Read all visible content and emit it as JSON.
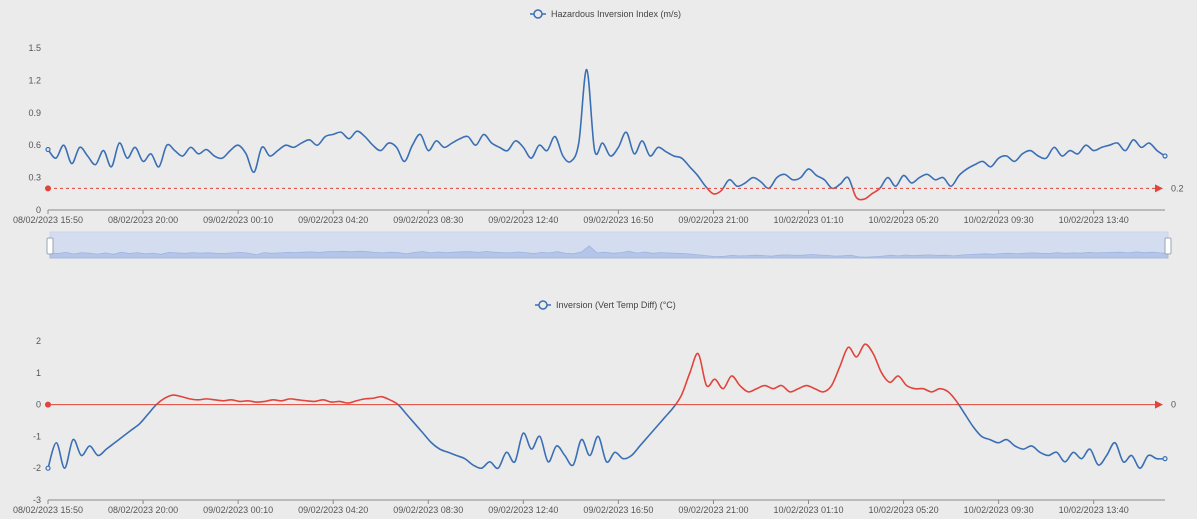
{
  "chart_data": [
    {
      "type": "line",
      "title": "",
      "legend": "Hazardous Inversion Index (m/s)",
      "legend_position": "top-center",
      "series_color": "#3a6fb5",
      "below_threshold_color": "#e0443a",
      "grid": false,
      "ylim": [
        0,
        1.5
      ],
      "yticks": [
        "0",
        "0.3",
        "0.6",
        "0.9",
        "1.2",
        "1.5"
      ],
      "xticks": [
        "08/02/2023 15:50",
        "08/02/2023 20:00",
        "09/02/2023 00:10",
        "09/02/2023 04:20",
        "09/02/2023 08:30",
        "09/02/2023 12:40",
        "09/02/2023 16:50",
        "09/02/2023 21:00",
        "10/02/2023 01:10",
        "10/02/2023 05:20",
        "10/02/2023 09:30",
        "10/02/2023 13:40"
      ],
      "x_start": "08/02/2023 15:50",
      "x_step_minutes": 30,
      "threshold": {
        "value": 0.2,
        "label": "0.2",
        "color": "#e0443a"
      },
      "values": [
        0.56,
        0.48,
        0.6,
        0.43,
        0.58,
        0.5,
        0.42,
        0.55,
        0.4,
        0.62,
        0.48,
        0.58,
        0.45,
        0.52,
        0.4,
        0.6,
        0.55,
        0.5,
        0.58,
        0.52,
        0.56,
        0.5,
        0.48,
        0.55,
        0.6,
        0.52,
        0.35,
        0.58,
        0.5,
        0.55,
        0.6,
        0.58,
        0.62,
        0.65,
        0.6,
        0.68,
        0.7,
        0.72,
        0.66,
        0.73,
        0.68,
        0.6,
        0.55,
        0.62,
        0.58,
        0.45,
        0.6,
        0.7,
        0.55,
        0.64,
        0.58,
        0.62,
        0.66,
        0.68,
        0.6,
        0.7,
        0.62,
        0.58,
        0.55,
        0.64,
        0.58,
        0.48,
        0.6,
        0.55,
        0.68,
        0.5,
        0.45,
        0.62,
        1.3,
        0.55,
        0.62,
        0.5,
        0.58,
        0.72,
        0.52,
        0.64,
        0.5,
        0.58,
        0.54,
        0.5,
        0.48,
        0.4,
        0.32,
        0.22,
        0.15,
        0.18,
        0.28,
        0.22,
        0.25,
        0.3,
        0.26,
        0.2,
        0.3,
        0.33,
        0.28,
        0.3,
        0.38,
        0.32,
        0.28,
        0.2,
        0.24,
        0.3,
        0.12,
        0.1,
        0.15,
        0.2,
        0.3,
        0.22,
        0.32,
        0.25,
        0.3,
        0.33,
        0.28,
        0.3,
        0.22,
        0.32,
        0.38,
        0.42,
        0.45,
        0.4,
        0.48,
        0.5,
        0.45,
        0.52,
        0.55,
        0.5,
        0.48,
        0.58,
        0.5,
        0.55,
        0.52,
        0.6,
        0.55,
        0.58,
        0.6,
        0.62,
        0.55,
        0.65,
        0.58,
        0.62,
        0.55,
        0.5
      ]
    },
    {
      "type": "line",
      "title": "",
      "legend": "Inversion (Vert Temp Diff) (°C)",
      "legend_position": "top-center",
      "series_color": "#3a6fb5",
      "above_threshold_color": "#e0443a",
      "grid": false,
      "ylim": [
        -3,
        2
      ],
      "yticks": [
        "-3",
        "-2",
        "-1",
        "0",
        "1",
        "2"
      ],
      "xticks": [
        "08/02/2023 15:50",
        "08/02/2023 20:00",
        "09/02/2023 00:10",
        "09/02/2023 04:20",
        "09/02/2023 08:30",
        "09/02/2023 12:40",
        "09/02/2023 16:50",
        "09/02/2023 21:00",
        "10/02/2023 01:10",
        "10/02/2023 05:20",
        "10/02/2023 09:30",
        "10/02/2023 13:40"
      ],
      "x_start": "08/02/2023 15:50",
      "x_step_minutes": 30,
      "threshold": {
        "value": 0,
        "label": "0",
        "color": "#e0443a"
      },
      "values": [
        -2.0,
        -1.2,
        -2.0,
        -1.1,
        -1.6,
        -1.3,
        -1.6,
        -1.4,
        -1.2,
        -1.0,
        -0.8,
        -0.6,
        -0.3,
        0.0,
        0.2,
        0.3,
        0.25,
        0.18,
        0.15,
        0.18,
        0.15,
        0.12,
        0.15,
        0.1,
        0.12,
        0.08,
        0.1,
        0.15,
        0.12,
        0.18,
        0.15,
        0.12,
        0.1,
        0.15,
        0.08,
        0.1,
        0.05,
        0.12,
        0.18,
        0.2,
        0.25,
        0.15,
        0.0,
        -0.3,
        -0.6,
        -0.9,
        -1.2,
        -1.4,
        -1.5,
        -1.6,
        -1.7,
        -1.9,
        -2.0,
        -1.8,
        -2.0,
        -1.5,
        -1.8,
        -0.9,
        -1.4,
        -1.0,
        -1.8,
        -1.3,
        -1.6,
        -1.9,
        -1.1,
        -1.6,
        -1.0,
        -1.8,
        -1.5,
        -1.7,
        -1.6,
        -1.3,
        -1.0,
        -0.7,
        -0.4,
        -0.1,
        0.3,
        1.0,
        1.6,
        0.6,
        0.8,
        0.5,
        0.9,
        0.6,
        0.4,
        0.5,
        0.6,
        0.5,
        0.6,
        0.4,
        0.5,
        0.6,
        0.5,
        0.4,
        0.6,
        1.2,
        1.8,
        1.5,
        1.9,
        1.6,
        1.0,
        0.7,
        0.9,
        0.6,
        0.5,
        0.5,
        0.4,
        0.5,
        0.4,
        0.1,
        -0.3,
        -0.7,
        -1.0,
        -1.1,
        -1.2,
        -1.1,
        -1.3,
        -1.4,
        -1.3,
        -1.5,
        -1.6,
        -1.5,
        -1.8,
        -1.5,
        -1.7,
        -1.4,
        -1.9,
        -1.6,
        -1.2,
        -1.8,
        -1.6,
        -2.0,
        -1.6,
        -1.7,
        -1.7
      ]
    }
  ]
}
